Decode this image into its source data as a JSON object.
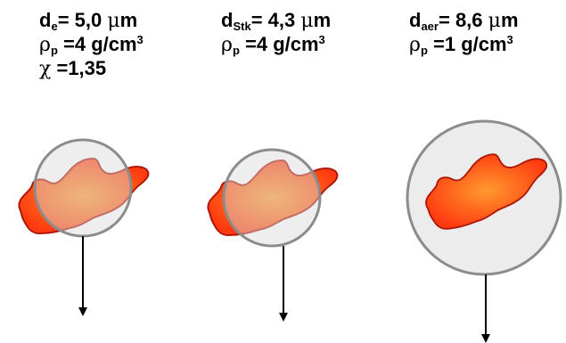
{
  "panels": [
    {
      "d_symbol": "d",
      "d_sub": "e",
      "d_value": "= 5,0 ",
      "d_unit_symbol": "μ",
      "d_unit": "m",
      "rho_symbol": "ρ",
      "rho_sub": "p",
      "rho_value": " =4 g/cm",
      "rho_exp": "3",
      "chi_symbol": "χ",
      "chi_value": " =1,35"
    },
    {
      "d_symbol": "d",
      "d_sub": "Stk",
      "d_value": "= 4,3 ",
      "d_unit_symbol": "μ",
      "d_unit": "m",
      "rho_symbol": "ρ",
      "rho_sub": "p",
      "rho_value": " =4 g/cm",
      "rho_exp": "3"
    },
    {
      "d_symbol": "d",
      "d_sub": "aer",
      "d_value": "= 8,6 ",
      "d_unit_symbol": "μ",
      "d_unit": "m",
      "rho_symbol": "ρ",
      "rho_sub": "p",
      "rho_value": " =1 g/cm",
      "rho_exp": "3"
    }
  ],
  "colors": {
    "particle_center": "#ff9a2e",
    "particle_edge": "#ff3a10",
    "particle_outline": "#b01808",
    "sphere_fill": "#d9d9d9",
    "sphere_stroke": "#8c8c8c",
    "arrow": "#000000"
  }
}
